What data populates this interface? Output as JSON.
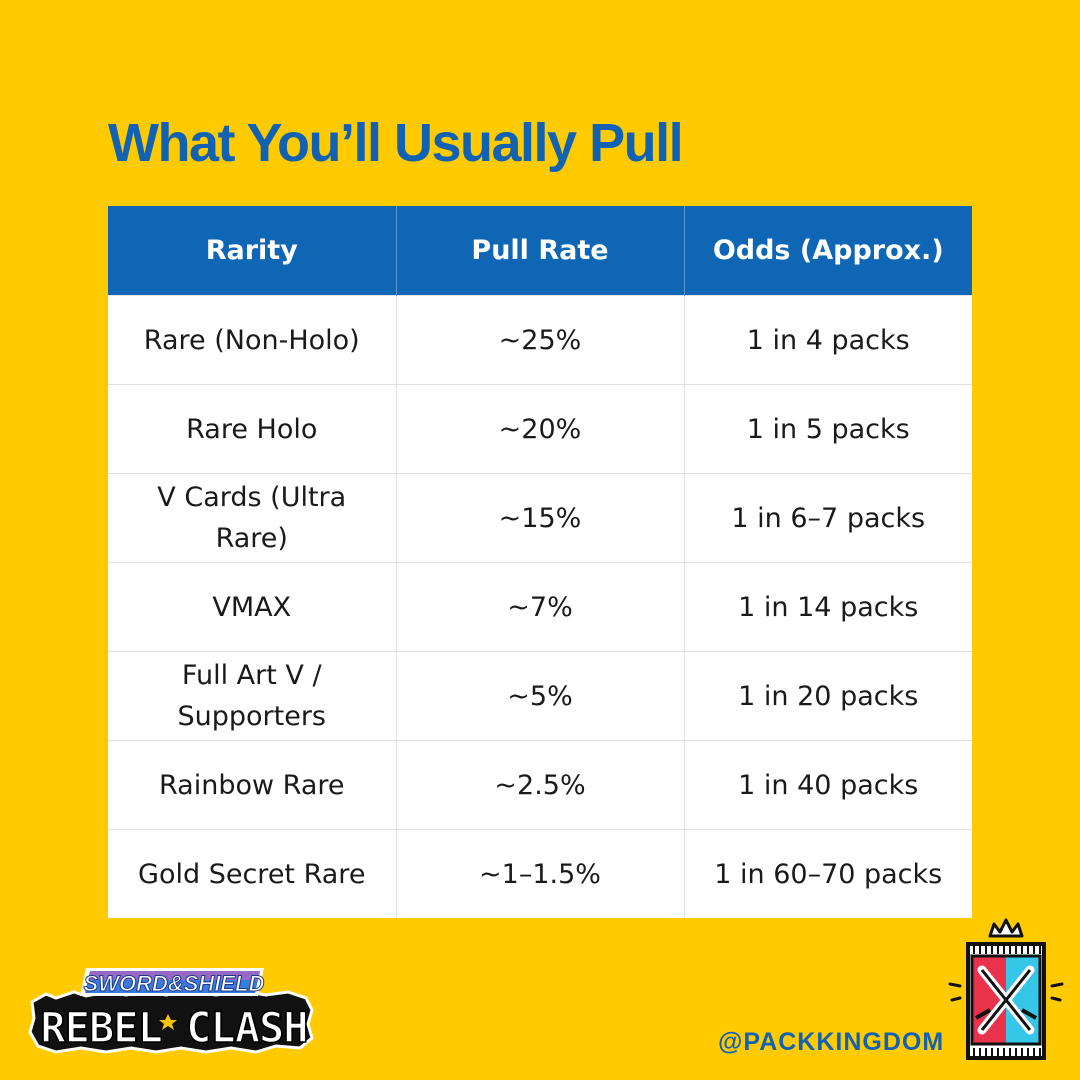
{
  "title": "What You’ll Usually Pull",
  "table": {
    "headers": [
      "Rarity",
      "Pull Rate",
      "Odds (Approx.)"
    ],
    "rows": [
      [
        "Rare (Non-Holo)",
        "~25%",
        "1 in 4 packs"
      ],
      [
        "Rare Holo",
        "~20%",
        "1 in 5 packs"
      ],
      [
        "V Cards (Ultra Rare)",
        "~15%",
        "1 in 6–7 packs"
      ],
      [
        "VMAX",
        "~7%",
        "1 in 14 packs"
      ],
      [
        "Full Art V / Supporters",
        "~5%",
        "1 in 20 packs"
      ],
      [
        "Rainbow Rare",
        "~2.5%",
        "1 in 40 packs"
      ],
      [
        "Gold Secret Rare",
        "~1–1.5%",
        "1 in 60–70 packs"
      ]
    ]
  },
  "logo": {
    "top": "SWORD&SHIELD",
    "bottom": "REBEL CLASH"
  },
  "handle": "@PACKKINGDOM",
  "colors": {
    "background": "#FFCB00",
    "accent_blue": "#1262B3",
    "header_blue": "#0F66B5"
  },
  "icons": [
    "crown-icon",
    "crossed-swords-icon",
    "sword-shield-logo"
  ]
}
